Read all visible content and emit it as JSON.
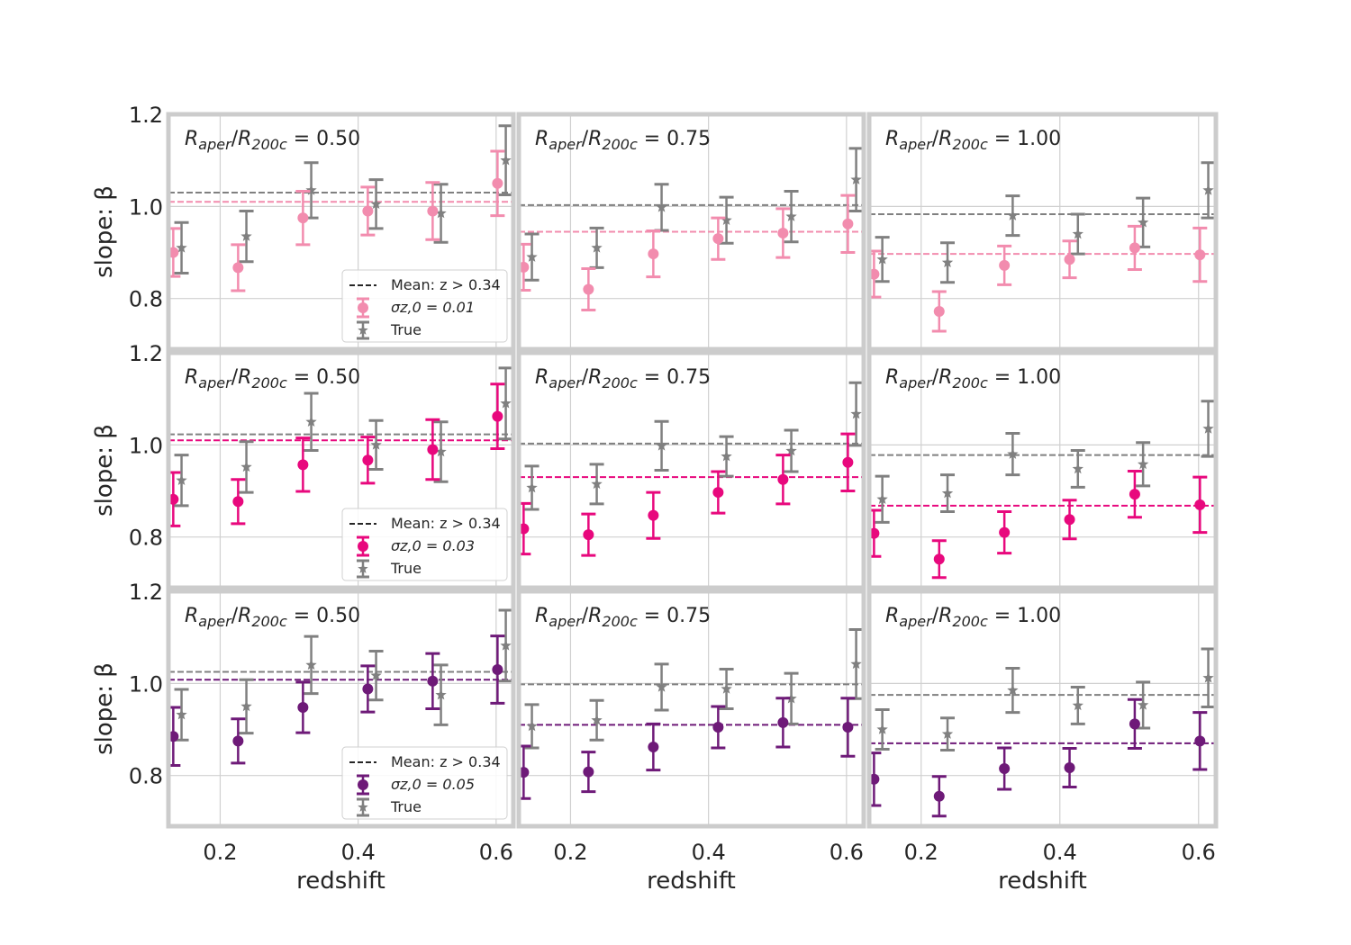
{
  "chart_data": {
    "type": "scatter",
    "ylabel": "slope: β",
    "xlabel": "redshift",
    "xlim": [
      0.125,
      0.625
    ],
    "ylim": [
      0.69,
      1.2
    ],
    "xticks": [
      "0.2",
      "0.4",
      "0.6"
    ],
    "xtick_values": [
      0.2,
      0.4,
      0.6
    ],
    "yticks": [
      "0.8",
      "1.0",
      "1.2"
    ],
    "ytick_values": [
      0.8,
      1.0,
      1.2
    ],
    "grid": true,
    "legend_loc": "lower-right of first panel in each row",
    "x_true": [
      0.144,
      0.238,
      0.332,
      0.426,
      0.52,
      0.614
    ],
    "x_obs": [
      0.132,
      0.226,
      0.32,
      0.414,
      0.508,
      0.602
    ],
    "true_color": "#808080",
    "rows": [
      {
        "sigma_label": "σ_{z,0} = 0.01",
        "color": "#f28cae",
        "legend": {
          "mean": "Mean: z > 0.34",
          "sigma": "σz,0 = 0.01",
          "true": "True"
        },
        "panels": [
          {
            "title": "Raper/R200c = 0.50",
            "obs": [
              [
                0.9,
                0.052
              ],
              [
                0.867,
                0.05
              ],
              [
                0.975,
                0.058
              ],
              [
                0.99,
                0.052
              ],
              [
                0.99,
                0.062
              ],
              [
                1.05,
                0.07
              ]
            ],
            "true": [
              [
                0.91,
                0.055
              ],
              [
                0.935,
                0.055
              ],
              [
                1.035,
                0.06
              ],
              [
                1.005,
                0.053
              ],
              [
                0.985,
                0.063
              ],
              [
                1.1,
                0.075
              ]
            ],
            "mean_obs": 1.01,
            "mean_true": 1.03
          },
          {
            "title": "Raper/R200c = 0.75",
            "obs": [
              [
                0.868,
                0.05
              ],
              [
                0.82,
                0.045
              ],
              [
                0.897,
                0.05
              ],
              [
                0.93,
                0.045
              ],
              [
                0.942,
                0.053
              ],
              [
                0.962,
                0.062
              ]
            ],
            "true": [
              [
                0.89,
                0.05
              ],
              [
                0.91,
                0.043
              ],
              [
                0.998,
                0.05
              ],
              [
                0.97,
                0.05
              ],
              [
                0.978,
                0.055
              ],
              [
                1.058,
                0.068
              ]
            ],
            "mean_obs": 0.945,
            "mean_true": 1.003
          },
          {
            "title": "Raper/R200c = 1.00",
            "obs": [
              [
                0.853,
                0.05
              ],
              [
                0.772,
                0.043
              ],
              [
                0.872,
                0.042
              ],
              [
                0.885,
                0.04
              ],
              [
                0.91,
                0.047
              ],
              [
                0.895,
                0.058
              ]
            ],
            "true": [
              [
                0.885,
                0.048
              ],
              [
                0.878,
                0.043
              ],
              [
                0.98,
                0.043
              ],
              [
                0.94,
                0.043
              ],
              [
                0.965,
                0.053
              ],
              [
                1.035,
                0.06
              ]
            ],
            "mean_obs": 0.897,
            "mean_true": 0.983
          }
        ]
      },
      {
        "sigma_label": "σ_{z,0} = 0.03",
        "color": "#e8087d",
        "legend": {
          "mean": "Mean: z > 0.34",
          "sigma": "σz,0 = 0.03",
          "true": "True"
        },
        "panels": [
          {
            "title": "Raper/R200c = 0.50",
            "obs": [
              [
                0.882,
                0.058
              ],
              [
                0.877,
                0.048
              ],
              [
                0.957,
                0.058
              ],
              [
                0.967,
                0.05
              ],
              [
                0.99,
                0.065
              ],
              [
                1.062,
                0.07
              ]
            ],
            "true": [
              [
                0.923,
                0.055
              ],
              [
                0.952,
                0.055
              ],
              [
                1.05,
                0.062
              ],
              [
                1.0,
                0.053
              ],
              [
                0.985,
                0.065
              ],
              [
                1.09,
                0.077
              ]
            ],
            "mean_obs": 1.01,
            "mean_true": 1.023
          },
          {
            "title": "Raper/R200c = 0.75",
            "obs": [
              [
                0.818,
                0.055
              ],
              [
                0.805,
                0.045
              ],
              [
                0.847,
                0.05
              ],
              [
                0.897,
                0.045
              ],
              [
                0.925,
                0.053
              ],
              [
                0.962,
                0.062
              ]
            ],
            "true": [
              [
                0.907,
                0.047
              ],
              [
                0.915,
                0.043
              ],
              [
                0.998,
                0.053
              ],
              [
                0.975,
                0.043
              ],
              [
                0.987,
                0.045
              ],
              [
                1.067,
                0.068
              ]
            ],
            "mean_obs": 0.93,
            "mean_true": 1.003
          },
          {
            "title": "Raper/R200c = 1.00",
            "obs": [
              [
                0.808,
                0.05
              ],
              [
                0.752,
                0.04
              ],
              [
                0.81,
                0.045
              ],
              [
                0.838,
                0.042
              ],
              [
                0.893,
                0.05
              ],
              [
                0.87,
                0.06
              ]
            ],
            "true": [
              [
                0.882,
                0.05
              ],
              [
                0.895,
                0.04
              ],
              [
                0.98,
                0.045
              ],
              [
                0.948,
                0.04
              ],
              [
                0.958,
                0.047
              ],
              [
                1.035,
                0.06
              ]
            ],
            "mean_obs": 0.868,
            "mean_true": 0.978
          }
        ]
      },
      {
        "sigma_label": "σ_{z,0} = 0.05",
        "color": "#6e1a78",
        "legend": {
          "mean": "Mean: z > 0.34",
          "sigma": "σz,0 = 0.05",
          "true": "True"
        },
        "panels": [
          {
            "title": "Raper/R200c = 0.50",
            "obs": [
              [
                0.885,
                0.063
              ],
              [
                0.875,
                0.048
              ],
              [
                0.948,
                0.055
              ],
              [
                0.988,
                0.05
              ],
              [
                1.005,
                0.06
              ],
              [
                1.03,
                0.073
              ]
            ],
            "true": [
              [
                0.932,
                0.055
              ],
              [
                0.95,
                0.058
              ],
              [
                1.04,
                0.062
              ],
              [
                1.017,
                0.053
              ],
              [
                0.975,
                0.065
              ],
              [
                1.082,
                0.077
              ]
            ],
            "mean_obs": 1.008,
            "mean_true": 1.025
          },
          {
            "title": "Raper/R200c = 0.75",
            "obs": [
              [
                0.807,
                0.057
              ],
              [
                0.808,
                0.043
              ],
              [
                0.862,
                0.05
              ],
              [
                0.905,
                0.045
              ],
              [
                0.915,
                0.053
              ],
              [
                0.905,
                0.063
              ]
            ],
            "true": [
              [
                0.907,
                0.047
              ],
              [
                0.92,
                0.043
              ],
              [
                0.992,
                0.05
              ],
              [
                0.988,
                0.043
              ],
              [
                0.967,
                0.055
              ],
              [
                1.042,
                0.075
              ]
            ],
            "mean_obs": 0.91,
            "mean_true": 0.998
          },
          {
            "title": "Raper/R200c = 1.00",
            "obs": [
              [
                0.792,
                0.057
              ],
              [
                0.755,
                0.043
              ],
              [
                0.815,
                0.045
              ],
              [
                0.817,
                0.042
              ],
              [
                0.912,
                0.053
              ],
              [
                0.875,
                0.062
              ]
            ],
            "true": [
              [
                0.9,
                0.043
              ],
              [
                0.89,
                0.035
              ],
              [
                0.985,
                0.048
              ],
              [
                0.952,
                0.04
              ],
              [
                0.953,
                0.05
              ],
              [
                1.012,
                0.063
              ]
            ],
            "mean_obs": 0.87,
            "mean_true": 0.975
          }
        ]
      }
    ]
  }
}
